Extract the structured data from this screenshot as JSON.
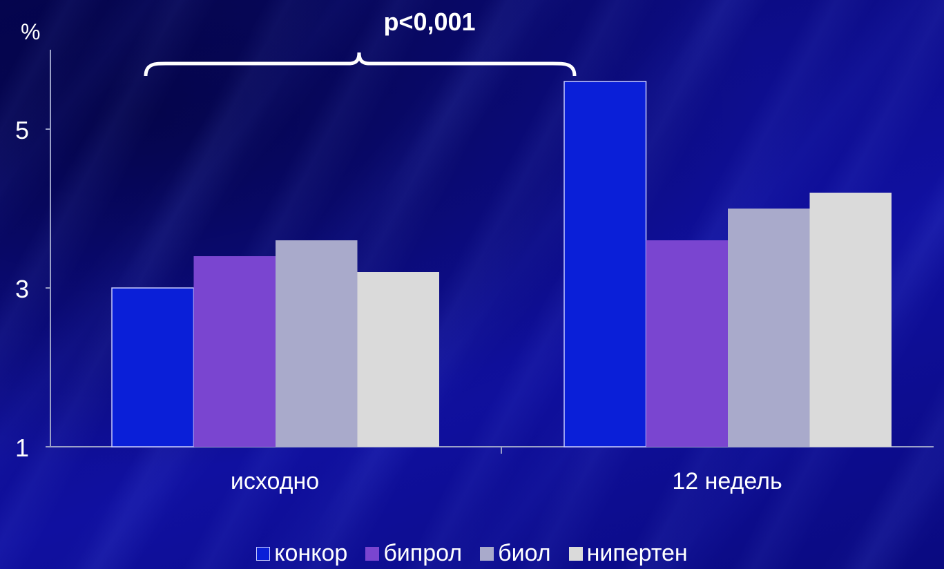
{
  "chart_data": {
    "type": "bar",
    "title": "",
    "ylabel": "%",
    "xlabel": "",
    "ylim": [
      1,
      6
    ],
    "yticks": [
      "1",
      "3",
      "5"
    ],
    "categories": [
      "исходно",
      "12 недель"
    ],
    "series": [
      {
        "name": "конкор",
        "values": [
          3.0,
          5.6
        ],
        "color": "#0a1fd8"
      },
      {
        "name": "бипрол",
        "values": [
          3.4,
          3.6
        ],
        "color": "#7a45d0"
      },
      {
        "name": "биол",
        "values": [
          3.6,
          4.0
        ],
        "color": "#a9aacb"
      },
      {
        "name": "нипертен",
        "values": [
          3.2,
          4.2
        ],
        "color": "#dadada"
      }
    ],
    "annotation": "p<0,001",
    "legend_position": "bottom",
    "grid": false
  }
}
